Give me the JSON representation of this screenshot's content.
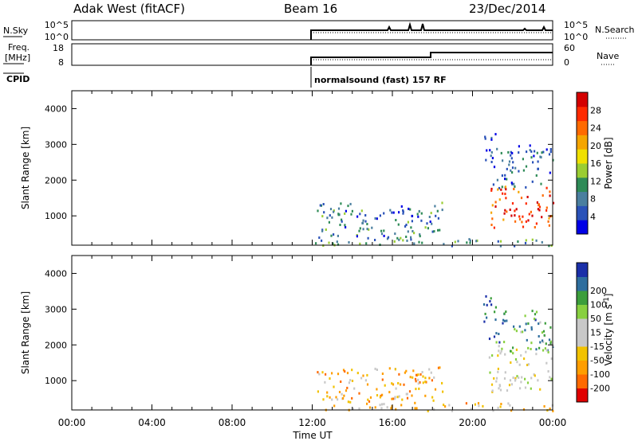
{
  "header": {
    "radar": "Adak West (fitACF)",
    "beam": "Beam 16",
    "date": "23/Dec/2014"
  },
  "sky_panel": {
    "left_label": "N.Sky",
    "left_ticks": [
      "10^5",
      "10^0"
    ],
    "right_ticks": [
      "10^5",
      "10^0"
    ],
    "right_label": "N.Search"
  },
  "freq_panel": {
    "left_label_1": "Freq.",
    "left_label_2": "[MHz]",
    "left_ticks": [
      "18",
      "8"
    ],
    "right_ticks": [
      "60",
      "0"
    ],
    "right_label": "Nave"
  },
  "cpid": {
    "label": "CPID",
    "program": "normalsound (fast) 157 RF"
  },
  "xaxis": {
    "label": "Time UT",
    "ticks": [
      "00:00",
      "04:00",
      "08:00",
      "12:00",
      "16:00",
      "20:00",
      "00:00"
    ]
  },
  "colors": {
    "power": [
      "#0000e6",
      "#2a52b8",
      "#4a7f9f",
      "#2e8b57",
      "#9acd32",
      "#f0e000",
      "#f5a500",
      "#ff6a00",
      "#ff2a00",
      "#d40000"
    ],
    "velocity": [
      "#e00000",
      "#ff6a00",
      "#ff9e00",
      "#f2c200",
      "#c8c8c8",
      "#c8c8c8",
      "#88d040",
      "#3c9e3c",
      "#2e6e9e",
      "#1a2fa8"
    ]
  },
  "chart_data": [
    {
      "type": "heatmap",
      "name": "power",
      "ylabel": "Slant Range [km]",
      "ylim": [
        180,
        4500
      ],
      "yticks": [
        1000,
        2000,
        3000,
        4000
      ],
      "xlim_hours": [
        0,
        24
      ],
      "colorbar": {
        "label": "Power [dB]",
        "range": [
          0,
          32
        ],
        "tick_values": [
          4,
          8,
          12,
          16,
          20,
          24,
          28
        ]
      },
      "echo_regions": [
        {
          "t": [
            12.0,
            24.0
          ],
          "r": [
            180,
            400
          ],
          "level": 0.3
        },
        {
          "t": [
            12.2,
            18.5
          ],
          "r": [
            400,
            1400
          ],
          "level": 0.25
        },
        {
          "t": [
            15.9,
            17.6
          ],
          "r": [
            950,
            1300
          ],
          "level": 0.12
        },
        {
          "t": [
            20.5,
            21.2
          ],
          "r": [
            2200,
            3400
          ],
          "level": 0.1
        },
        {
          "t": [
            21.0,
            24.0
          ],
          "r": [
            1800,
            3000
          ],
          "level": 0.22
        },
        {
          "t": [
            20.8,
            24.0
          ],
          "r": [
            700,
            1900
          ],
          "level": 0.82
        }
      ]
    },
    {
      "type": "heatmap",
      "name": "velocity",
      "ylabel": "Slant Range [km]",
      "ylim": [
        180,
        4500
      ],
      "yticks": [
        1000,
        2000,
        3000,
        4000
      ],
      "xlim_hours": [
        0,
        24
      ],
      "colorbar": {
        "label": "Velocity [m s^-1]",
        "tick_labels": [
          "-200",
          "-100",
          "-50",
          "-15",
          "15",
          "50",
          "100",
          "200"
        ]
      },
      "echo_regions": [
        {
          "t": [
            12.0,
            24.0
          ],
          "r": [
            180,
            400
          ],
          "level": 0.35
        },
        {
          "t": [
            12.2,
            18.5
          ],
          "r": [
            400,
            1400
          ],
          "level": 0.3
        },
        {
          "t": [
            15.9,
            17.6
          ],
          "r": [
            950,
            1300
          ],
          "level": 0.25
        },
        {
          "t": [
            20.5,
            21.2
          ],
          "r": [
            2200,
            3400
          ],
          "level": 0.92
        },
        {
          "t": [
            21.0,
            24.0
          ],
          "r": [
            1800,
            3000
          ],
          "level": 0.75
        },
        {
          "t": [
            20.8,
            24.0
          ],
          "r": [
            700,
            1900
          ],
          "level": 0.5
        }
      ]
    }
  ]
}
